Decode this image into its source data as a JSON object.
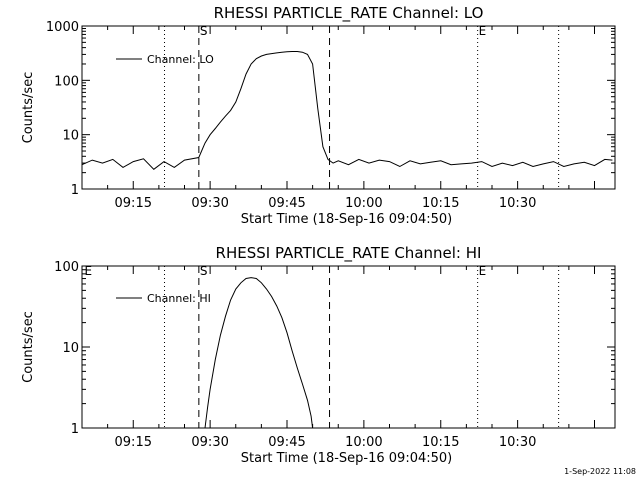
{
  "footer": {
    "timestamp": "1-Sep-2022 11:08"
  },
  "chart_data": [
    {
      "type": "line",
      "title": "RHESSI PARTICLE_RATE Channel: LO",
      "xlabel": "Start Time (18-Sep-16 09:04:50)",
      "ylabel": "Counts/sec",
      "yscale": "log",
      "xlim_minutes": [
        5.0,
        109.0
      ],
      "ylim": [
        1,
        1000
      ],
      "x_ticks": [
        {
          "label": "09:15",
          "minute": 15
        },
        {
          "label": "09:30",
          "minute": 30
        },
        {
          "label": "09:45",
          "minute": 45
        },
        {
          "label": "10:00",
          "minute": 60
        },
        {
          "label": "10:15",
          "minute": 75
        },
        {
          "label": "10:30",
          "minute": 90
        }
      ],
      "y_ticks": [
        {
          "label": "1",
          "value": 1
        },
        {
          "label": "10",
          "value": 10
        },
        {
          "label": "100",
          "value": 100
        },
        {
          "label": "1000",
          "value": 1000
        }
      ],
      "legend": {
        "label": "Channel: LO",
        "position": "top-left"
      },
      "vlines": [
        {
          "minute": 21.1,
          "style": "dotted",
          "label": ""
        },
        {
          "minute": 27.8,
          "style": "dashed",
          "label": "S"
        },
        {
          "minute": 53.3,
          "style": "dashed",
          "label": ""
        },
        {
          "minute": 82.2,
          "style": "dotted",
          "label": "E"
        },
        {
          "minute": 98.0,
          "style": "dotted",
          "label": ""
        }
      ],
      "series": [
        {
          "name": "Channel: LO",
          "x": [
            5,
            7,
            9,
            11,
            13,
            15,
            17,
            19,
            21,
            23,
            25,
            27.8,
            29,
            30,
            31,
            32,
            33,
            34,
            35,
            36,
            37,
            38,
            39,
            40,
            41,
            42,
            43,
            44,
            45,
            46,
            47,
            48,
            49,
            50,
            51,
            52,
            53,
            54,
            55,
            57,
            59,
            61,
            63,
            65,
            67,
            69,
            71,
            73,
            75,
            77,
            79,
            81,
            83,
            85,
            87,
            89,
            91,
            93,
            95,
            97,
            99,
            101,
            103,
            105,
            107,
            108.5
          ],
          "y": [
            2.8,
            3.4,
            3.0,
            3.5,
            2.5,
            3.2,
            3.6,
            2.3,
            3.2,
            2.5,
            3.4,
            3.8,
            7,
            10,
            13,
            17,
            22,
            28,
            40,
            70,
            130,
            200,
            250,
            280,
            300,
            310,
            320,
            330,
            335,
            340,
            340,
            330,
            300,
            200,
            30,
            6,
            3.5,
            3.0,
            3.3,
            2.8,
            3.5,
            3.0,
            3.4,
            3.2,
            2.6,
            3.3,
            2.9,
            3.1,
            3.3,
            2.8,
            2.9,
            3.0,
            3.2,
            2.6,
            3.0,
            2.7,
            3.1,
            2.6,
            2.9,
            3.2,
            2.6,
            2.9,
            3.1,
            2.7,
            3.5,
            3.4
          ]
        }
      ]
    },
    {
      "type": "line",
      "title": "RHESSI PARTICLE_RATE Channel: HI",
      "xlabel": "Start Time (18-Sep-16 09:04:50)",
      "ylabel": "Counts/sec",
      "yscale": "log",
      "xlim_minutes": [
        5.0,
        109.0
      ],
      "ylim": [
        1,
        100
      ],
      "x_ticks": [
        {
          "label": "09:15",
          "minute": 15
        },
        {
          "label": "09:30",
          "minute": 30
        },
        {
          "label": "09:45",
          "minute": 45
        },
        {
          "label": "10:00",
          "minute": 60
        },
        {
          "label": "10:15",
          "minute": 75
        },
        {
          "label": "10:30",
          "minute": 90
        }
      ],
      "y_ticks": [
        {
          "label": "1",
          "value": 1
        },
        {
          "label": "10",
          "value": 10
        },
        {
          "label": "100",
          "value": 100
        }
      ],
      "legend": {
        "label": "Channel: HI",
        "position": "top-left"
      },
      "vlines": [
        {
          "minute": 5.3,
          "style": "none",
          "label": "E"
        },
        {
          "minute": 21.1,
          "style": "dotted",
          "label": ""
        },
        {
          "minute": 27.8,
          "style": "dashed",
          "label": "S"
        },
        {
          "minute": 53.3,
          "style": "dashed",
          "label": ""
        },
        {
          "minute": 82.2,
          "style": "dotted",
          "label": "E"
        },
        {
          "minute": 98.0,
          "style": "dotted",
          "label": ""
        }
      ],
      "series": [
        {
          "name": "Channel: HI",
          "x": [
            29.0,
            29.5,
            30.0,
            31.0,
            32.0,
            33.0,
            34.0,
            35.0,
            36.0,
            37.0,
            38.0,
            39.0,
            40.0,
            41.0,
            42.0,
            43.0,
            44.0,
            45.0,
            46.0,
            47.0,
            48.0,
            49.0,
            49.7,
            50.0
          ],
          "y": [
            1.0,
            1.8,
            3.0,
            7,
            14,
            24,
            38,
            52,
            62,
            70,
            72,
            70,
            62,
            52,
            42,
            32,
            23,
            15,
            9,
            5.5,
            3.5,
            2.2,
            1.4,
            1.0
          ]
        }
      ]
    }
  ]
}
